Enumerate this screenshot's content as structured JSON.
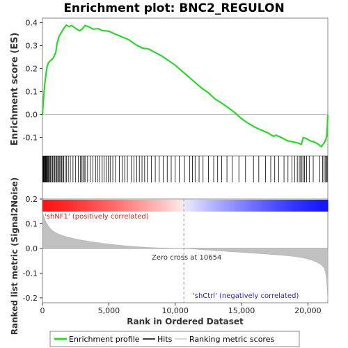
{
  "chart_data": {
    "type": "line",
    "title": "Enrichment plot: BNC2_REGULON",
    "xlabel": "Rank in Ordered Dataset",
    "ylabel_top": "Enrichment score (ES)",
    "ylabel_bottom": "Ranked list metric (Signal2Noise)",
    "x_ticks": [
      {
        "v": 0,
        "label": "0"
      },
      {
        "v": 5000,
        "label": "5,000"
      },
      {
        "v": 10000,
        "label": "10,000"
      },
      {
        "v": 15000,
        "label": "15,000"
      },
      {
        "v": 20000,
        "label": "20,000"
      }
    ],
    "es_ticks": [
      {
        "v": 0.4,
        "label": "0.4"
      },
      {
        "v": 0.3,
        "label": "0.3"
      },
      {
        "v": 0.2,
        "label": "0.2"
      },
      {
        "v": 0.1,
        "label": "0.1"
      },
      {
        "v": 0.0,
        "label": "0.0"
      },
      {
        "v": -0.1,
        "label": "-0.1"
      }
    ],
    "metric_ticks": [
      {
        "v": 0.2,
        "label": "0.2"
      },
      {
        "v": 0.1,
        "label": "0.1"
      },
      {
        "v": 0.0,
        "label": "0.0"
      },
      {
        "v": -0.1,
        "label": "-0.1"
      },
      {
        "v": -0.2,
        "label": "-0.2"
      }
    ],
    "x_range": [
      0,
      21500
    ],
    "es_range": [
      -0.18,
      0.42
    ],
    "metric_range": [
      -0.22,
      0.2
    ],
    "es_curve": [
      [
        0,
        0.0
      ],
      [
        60,
        0.05
      ],
      [
        150,
        0.12
      ],
      [
        250,
        0.17
      ],
      [
        350,
        0.21
      ],
      [
        450,
        0.225
      ],
      [
        600,
        0.235
      ],
      [
        800,
        0.245
      ],
      [
        1000,
        0.27
      ],
      [
        1100,
        0.31
      ],
      [
        1250,
        0.34
      ],
      [
        1450,
        0.36
      ],
      [
        1600,
        0.375
      ],
      [
        1800,
        0.39
      ],
      [
        2000,
        0.383
      ],
      [
        2200,
        0.388
      ],
      [
        2500,
        0.375
      ],
      [
        2800,
        0.365
      ],
      [
        3000,
        0.372
      ],
      [
        3200,
        0.388
      ],
      [
        3500,
        0.382
      ],
      [
        3800,
        0.372
      ],
      [
        4200,
        0.374
      ],
      [
        4500,
        0.366
      ],
      [
        5000,
        0.363
      ],
      [
        5500,
        0.35
      ],
      [
        6000,
        0.338
      ],
      [
        6500,
        0.326
      ],
      [
        7000,
        0.305
      ],
      [
        7500,
        0.29
      ],
      [
        8000,
        0.285
      ],
      [
        8500,
        0.27
      ],
      [
        9000,
        0.255
      ],
      [
        9500,
        0.235
      ],
      [
        10000,
        0.215
      ],
      [
        10500,
        0.19
      ],
      [
        11000,
        0.165
      ],
      [
        11500,
        0.14
      ],
      [
        12000,
        0.115
      ],
      [
        12500,
        0.095
      ],
      [
        13000,
        0.068
      ],
      [
        13500,
        0.05
      ],
      [
        14000,
        0.03
      ],
      [
        14500,
        0.008
      ],
      [
        15000,
        -0.018
      ],
      [
        15500,
        -0.038
      ],
      [
        16000,
        -0.055
      ],
      [
        16500,
        -0.068
      ],
      [
        17000,
        -0.08
      ],
      [
        17400,
        -0.095
      ],
      [
        17600,
        -0.09
      ],
      [
        18000,
        -0.1
      ],
      [
        18500,
        -0.115
      ],
      [
        19000,
        -0.12
      ],
      [
        19300,
        -0.125
      ],
      [
        19500,
        -0.13
      ],
      [
        19650,
        -0.1
      ],
      [
        19900,
        -0.105
      ],
      [
        20200,
        -0.115
      ],
      [
        20500,
        -0.12
      ],
      [
        20800,
        -0.13
      ],
      [
        21000,
        -0.14
      ],
      [
        21200,
        -0.125
      ],
      [
        21350,
        -0.11
      ],
      [
        21420,
        -0.09
      ],
      [
        21460,
        -0.06
      ],
      [
        21500,
        0.0
      ]
    ],
    "hit_ranks": [
      20,
      60,
      100,
      140,
      180,
      220,
      260,
      300,
      340,
      380,
      430,
      480,
      530,
      600,
      680,
      760,
      840,
      920,
      1000,
      1080,
      1150,
      1230,
      1300,
      1380,
      1450,
      1530,
      1600,
      1700,
      1800,
      1950,
      2100,
      2300,
      2500,
      2700,
      2850,
      2950,
      3050,
      3150,
      3250,
      3400,
      3600,
      3800,
      4000,
      4150,
      4300,
      4500,
      4650,
      4800,
      4950,
      5100,
      5300,
      5500,
      5800,
      6000,
      6200,
      6400,
      6700,
      6900,
      7100,
      7300,
      7500,
      7700,
      7900,
      8200,
      8500,
      8800,
      9100,
      9400,
      9700,
      10000,
      10300,
      10700,
      11100,
      11300,
      11500,
      11800,
      12100,
      12500,
      12900,
      13200,
      13500,
      13900,
      14300,
      14800,
      15300,
      15900,
      16300,
      16800,
      17200,
      17500,
      17800,
      18200,
      18500,
      18800,
      19000,
      19200,
      19350,
      19450,
      19550,
      19650,
      19750,
      19900,
      20100,
      20400,
      20900,
      21100,
      21200,
      21300,
      21400,
      21450
    ],
    "zero_cross": 10654,
    "annotations": {
      "pos": "'shNF1' (positively correlated)",
      "neg": "'shCtrl' (negatively correlated)",
      "zero": "Zero cross at 10654"
    },
    "legend": [
      {
        "label": "Enrichment profile",
        "kind": "line",
        "color": "#2dd62d"
      },
      {
        "label": "Hits",
        "kind": "line",
        "color": "#000000"
      },
      {
        "label": "Ranking metric scores",
        "kind": "line",
        "color": "#cccccc"
      }
    ],
    "colors": {
      "es": "#2dd62d",
      "hits": "#000000",
      "metric_fill": "#c0c0c0",
      "pos": "#ff2020",
      "neg": "#2020ff"
    }
  }
}
